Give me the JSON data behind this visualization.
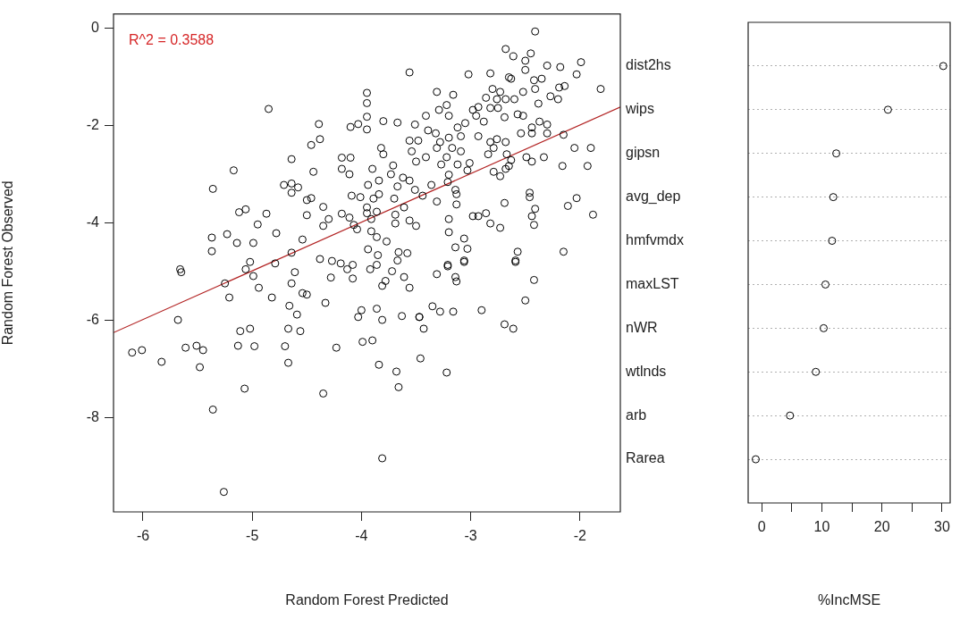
{
  "chart_data": [
    {
      "type": "scatter",
      "xlabel": "Random Forest Predicted",
      "ylabel": "Random Forest Observed",
      "annotations": [
        "R^2 = 0.3588"
      ],
      "xlim": [
        -6.27,
        -1.63
      ],
      "ylim": [
        -9.93,
        0.29
      ],
      "xticks": [
        -6,
        -5,
        -4,
        -3,
        -2
      ],
      "yticks": [
        -8,
        -6,
        -4,
        -2,
        0
      ],
      "series": [
        {
          "type": "scatter",
          "color": "#000000",
          "marker": "circle",
          "x": [
            -3.56,
            -4.85,
            -3.95,
            -3.95,
            -3.95,
            -3.95,
            -4.1,
            -4.03,
            -3.8,
            -3.67,
            -4.39,
            -4.38,
            -4.46,
            -4.64,
            -4.44,
            -5.17,
            -5.36,
            -4.71,
            -4.64,
            -4.58,
            -4.64,
            -5.12,
            -5.06,
            -4.87,
            -4.95,
            -4.78,
            -5.23,
            -5.14,
            -5.37,
            -5.37,
            -4.99,
            -4.54,
            -4.64,
            -4.5,
            -4.46,
            -4.35,
            -4.5,
            -4.3,
            -4.35,
            -4.18,
            -4.11,
            -4.18,
            -4.1,
            -4.18,
            -4.11,
            -3.9,
            -3.82,
            -3.8,
            -3.71,
            -3.73,
            -4.09,
            -4.01,
            -3.94,
            -3.89,
            -3.84,
            -3.84,
            -3.95,
            -3.95,
            -3.86,
            -3.91,
            -3.91,
            -3.86,
            -3.77,
            -4.07,
            -4.04,
            -3.94,
            -3.85,
            -3.66,
            -3.58,
            -3.67,
            -3.69,
            -3.69,
            -3.56,
            -3.5,
            -3.67,
            -3.62,
            -3.56,
            -3.51,
            -3.7,
            -3.61,
            -3.51,
            -3.56,
            -3.48,
            -3.54,
            -3.5,
            -4.38,
            -4.27,
            -4.19,
            -4.08,
            -5.02,
            -4.79,
            -5.66,
            -2.41,
            -2.68,
            -2.61,
            -2.45,
            -2.5,
            -3.02,
            -2.82,
            -2.65,
            -2.63,
            -2.5,
            -2.3,
            -2.18,
            -1.99,
            -2.03,
            -2.42,
            -2.35,
            -2.19,
            -2.14,
            -1.81,
            -3.31,
            -3.16,
            -2.8,
            -2.73,
            -2.52,
            -2.41,
            -2.27,
            -2.2,
            -2.38,
            -2.86,
            -2.76,
            -2.68,
            -2.6,
            -2.82,
            -2.75,
            -3.22,
            -3.29,
            -3.2,
            -3.41,
            -2.98,
            -2.93,
            -2.95,
            -2.88,
            -2.69,
            -2.57,
            -2.52,
            -2.54,
            -2.44,
            -2.37,
            -2.3,
            -2.44,
            -2.3,
            -2.15,
            -3.05,
            -3.12,
            -3.39,
            -3.32,
            -3.28,
            -3.2,
            -3.09,
            -2.93,
            -2.82,
            -2.76,
            -2.79,
            -2.84,
            -2.67,
            -2.68,
            -3.31,
            -3.17,
            -3.09,
            -3.41,
            -3.22,
            -3.27,
            -3.12,
            -3.01,
            -2.05,
            -1.9,
            -2.16,
            -1.93,
            -2.49,
            -2.44,
            -2.33,
            -2.63,
            -2.68,
            -2.79,
            -2.73,
            -2.65,
            -3.2,
            -3.36,
            -3.21,
            -3.03,
            -3.14,
            -3.13,
            -2.46,
            -2.46,
            -3.44,
            -3.31,
            -3.13,
            -2.69,
            -2.03,
            -2.11,
            -1.88,
            -2.41,
            -2.44,
            -2.42,
            -2.98,
            -2.93,
            -2.86,
            -2.82,
            -2.73,
            -3.2,
            -3.2,
            -3.06,
            -3.14,
            -3.03,
            -2.57,
            -2.15,
            -3.06,
            -3.21,
            -2.59,
            -5.65,
            -5.25,
            -5.21,
            -5.06,
            -4.99,
            -4.94,
            -4.82,
            -5.68,
            -6.1,
            -6.01,
            -5.83,
            -5.61,
            -5.51,
            -5.45,
            -5.48,
            -5.11,
            -5.02,
            -5.13,
            -4.98,
            -5.07,
            -5.36,
            -5.26,
            -4.61,
            -4.64,
            -4.54,
            -4.5,
            -4.66,
            -4.59,
            -4.67,
            -4.56,
            -4.7,
            -4.67,
            -4.35,
            -4.33,
            -4.28,
            -4.23,
            -4.08,
            -4.13,
            -4.0,
            -4.03,
            -3.86,
            -3.81,
            -3.99,
            -3.9,
            -3.84,
            -3.68,
            -3.66,
            -3.63,
            -3.47,
            -3.81,
            -3.81,
            -3.78,
            -3.72,
            -3.61,
            -3.56,
            -3.92,
            -3.86,
            -3.06,
            -3.21,
            -3.31,
            -3.14,
            -3.13,
            -2.59,
            -2.42,
            -2.5,
            -3.35,
            -3.28,
            -3.16,
            -2.9,
            -2.69,
            -2.61,
            -3.43,
            -3.46,
            -3.22,
            -3.47
          ],
          "values": [
            -0.91,
            -1.66,
            -1.33,
            -1.54,
            -1.82,
            -2.08,
            -2.03,
            -1.97,
            -1.91,
            -1.94,
            -1.97,
            -2.28,
            -2.4,
            -2.69,
            -2.95,
            -2.92,
            -3.3,
            -3.22,
            -3.19,
            -3.27,
            -3.38,
            -3.78,
            -3.72,
            -3.81,
            -4.03,
            -4.21,
            -4.23,
            -4.41,
            -4.3,
            -4.58,
            -4.41,
            -4.34,
            -4.61,
            -3.53,
            -3.49,
            -3.67,
            -3.84,
            -3.92,
            -4.06,
            -3.81,
            -3.89,
            -2.66,
            -2.66,
            -2.89,
            -3.0,
            -2.89,
            -2.46,
            -2.59,
            -2.82,
            -3.0,
            -3.44,
            -3.47,
            -3.22,
            -3.5,
            -3.13,
            -3.41,
            -3.68,
            -3.8,
            -3.77,
            -3.92,
            -4.17,
            -4.29,
            -4.38,
            -4.04,
            -4.13,
            -4.54,
            -4.66,
            -4.6,
            -4.62,
            -4.77,
            -3.83,
            -4.01,
            -3.95,
            -4.06,
            -3.25,
            -3.07,
            -3.13,
            -3.32,
            -3.5,
            -3.68,
            -1.98,
            -2.31,
            -2.31,
            -2.53,
            -2.74,
            -4.74,
            -4.78,
            -4.83,
            -4.86,
            -4.8,
            -4.83,
            -4.95,
            -0.07,
            -0.43,
            -0.58,
            -0.52,
            -0.67,
            -0.95,
            -0.93,
            -1.01,
            -1.04,
            -0.86,
            -0.77,
            -0.8,
            -0.7,
            -0.95,
            -1.07,
            -1.04,
            -1.22,
            -1.19,
            -1.25,
            -1.31,
            -1.37,
            -1.25,
            -1.31,
            -1.31,
            -1.25,
            -1.4,
            -1.46,
            -1.55,
            -1.43,
            -1.46,
            -1.46,
            -1.46,
            -1.64,
            -1.64,
            -1.58,
            -1.68,
            -1.8,
            -1.8,
            -1.68,
            -1.62,
            -1.8,
            -1.92,
            -1.83,
            -1.77,
            -1.8,
            -2.16,
            -2.04,
            -1.92,
            -1.98,
            -2.16,
            -2.16,
            -2.19,
            -1.95,
            -2.04,
            -2.1,
            -2.16,
            -2.34,
            -2.25,
            -2.22,
            -2.22,
            -2.34,
            -2.28,
            -2.46,
            -2.59,
            -2.59,
            -2.34,
            -2.46,
            -2.46,
            -2.53,
            -2.65,
            -2.65,
            -2.8,
            -2.8,
            -2.77,
            -2.46,
            -2.46,
            -2.83,
            -2.83,
            -2.65,
            -2.74,
            -2.65,
            -2.71,
            -2.89,
            -2.95,
            -3.04,
            -2.83,
            -3.01,
            -3.22,
            -3.16,
            -2.92,
            -3.32,
            -3.41,
            -3.38,
            -3.47,
            -3.44,
            -3.56,
            -3.62,
            -3.59,
            -3.49,
            -3.65,
            -3.83,
            -3.71,
            -3.86,
            -4.04,
            -3.86,
            -3.86,
            -3.8,
            -4.01,
            -4.1,
            -3.92,
            -4.19,
            -4.32,
            -4.5,
            -4.53,
            -4.59,
            -4.59,
            -4.77,
            -4.86,
            -4.77,
            -5.01,
            -5.24,
            -5.53,
            -4.95,
            -5.09,
            -5.33,
            -5.53,
            -5.99,
            -6.66,
            -6.61,
            -6.85,
            -6.56,
            -6.52,
            -6.61,
            -6.96,
            -6.22,
            -6.17,
            -6.52,
            -6.53,
            -7.4,
            -7.83,
            -9.52,
            -5.01,
            -5.24,
            -5.44,
            -5.47,
            -5.7,
            -5.88,
            -6.17,
            -6.22,
            -6.53,
            -6.87,
            -7.5,
            -5.64,
            -5.12,
            -6.56,
            -5.14,
            -4.95,
            -5.79,
            -5.93,
            -5.76,
            -5.99,
            -6.44,
            -6.41,
            -6.91,
            -7.05,
            -7.37,
            -5.91,
            -5.93,
            -8.83,
            -5.29,
            -5.19,
            -4.99,
            -5.11,
            -5.33,
            -4.95,
            -4.86,
            -4.8,
            -4.89,
            -5.05,
            -5.11,
            -5.2,
            -4.8,
            -5.17,
            -5.59,
            -5.71,
            -5.82,
            -5.82,
            -5.79,
            -6.08,
            -6.17,
            -6.17,
            -6.78,
            -7.07,
            -5.93
          ]
        },
        {
          "type": "line",
          "color": "#b22222",
          "x": [
            -6.27,
            -1.63
          ],
          "values": [
            -6.25,
            -1.62
          ]
        }
      ]
    },
    {
      "type": "scatter",
      "orientation": "horizontal",
      "xlabel": "%IncMSE",
      "categories": [
        "dist2hs",
        "wips",
        "gipsn",
        "avg_dep",
        "hmfvmdx",
        "maxLST",
        "nWR",
        "wtlnds",
        "arb",
        "Rarea"
      ],
      "values": [
        30.2,
        21.0,
        12.4,
        11.9,
        11.7,
        10.6,
        10.3,
        9.0,
        4.7,
        -1.0
      ],
      "color": "#000000",
      "xlim": [
        -2.26,
        31.35
      ],
      "xticks": [
        0,
        {
          "value": 5,
          "label": null
        },
        10,
        {
          "value": 15,
          "label": null
        },
        20,
        {
          "value": 25,
          "label": null
        },
        30
      ],
      "grid": "y",
      "marker": "circle"
    }
  ]
}
